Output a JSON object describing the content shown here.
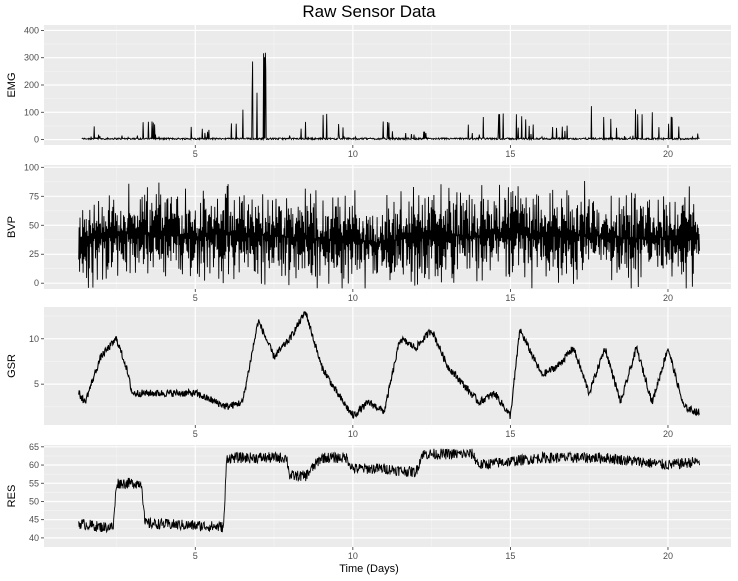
{
  "chart": {
    "title": "Raw Sensor Data",
    "xlabel": "Time (Days)"
  },
  "chart_data": {
    "type": "line",
    "title": "Raw Sensor Data",
    "xlabel": "Time (Days)",
    "xlim": [
      0.2,
      22
    ],
    "x_ticks": [
      5,
      10,
      15,
      20
    ],
    "grid": true,
    "panels": [
      {
        "name": "EMG",
        "ylabel": "EMG",
        "ylim": [
          -20,
          420
        ],
        "y_ticks": [
          0,
          100,
          200,
          300,
          400
        ],
        "series": [
          {
            "x": [
              1.4,
              1.9,
              2.2,
              3.3,
              4.0,
              5.2,
              6.0,
              7.2,
              8.0,
              9.0,
              10.0,
              11.0,
              12.0,
              13.0,
              14.0,
              15.0,
              16.0,
              17.0,
              18.0,
              19.0,
              20.0,
              21.0
            ],
            "y": [
              5,
              60,
              10,
              120,
              10,
              60,
              10,
              415,
              20,
              110,
              15,
              70,
              15,
              70,
              80,
              100,
              60,
              80,
              155,
              110,
              90,
              30
            ]
          }
        ]
      },
      {
        "name": "BVP",
        "ylabel": "BVP",
        "ylim": [
          -5,
          102
        ],
        "y_ticks": [
          0,
          25,
          50,
          75,
          100
        ],
        "series": [
          {
            "x": [
              1.3,
              2.0,
              3.0,
              4.0,
              5.0,
              6.0,
              7.0,
              8.0,
              9.0,
              10.0,
              11.0,
              12.0,
              13.0,
              14.0,
              15.0,
              16.0,
              17.0,
              18.0,
              19.0,
              20.0,
              21.0
            ],
            "y": [
              40,
              38,
              45,
              42,
              40,
              44,
              42,
              40,
              38,
              36,
              35,
              40,
              42,
              40,
              45,
              40,
              42,
              40,
              38,
              40,
              42
            ]
          }
        ]
      },
      {
        "name": "GSR",
        "ylabel": "GSR",
        "ylim": [
          0.5,
          13.5
        ],
        "y_ticks": [
          5,
          10
        ],
        "series": [
          {
            "x": [
              1.3,
              1.5,
              2.0,
              2.5,
              2.8,
              3.0,
              4.0,
              5.0,
              6.0,
              6.5,
              7.0,
              7.5,
              8.0,
              8.5,
              9.0,
              9.5,
              10.0,
              10.5,
              11.0,
              11.5,
              12.0,
              12.5,
              13.0,
              13.5,
              14.0,
              14.5,
              15.0,
              15.3,
              16.0,
              16.5,
              17.0,
              17.5,
              18.0,
              18.5,
              19.0,
              19.5,
              20.0,
              20.5,
              21.0
            ],
            "y": [
              4,
              3,
              8,
              10,
              7,
              4,
              4,
              4,
              2.5,
              3,
              12,
              8,
              10,
              13,
              7,
              4,
              1.5,
              3,
              2,
              10,
              9,
              11,
              7,
              5,
              3,
              4,
              1.5,
              11,
              6,
              7,
              9,
              4,
              9,
              3,
              9,
              3,
              9,
              2.5,
              1.8
            ]
          }
        ]
      },
      {
        "name": "RES",
        "ylabel": "RES",
        "ylim": [
          37.5,
          65.5
        ],
        "y_ticks": [
          40,
          45,
          50,
          55,
          60,
          65
        ],
        "series": [
          {
            "x": [
              1.3,
              2.0,
              2.4,
              2.5,
              3.3,
              3.4,
              5.9,
              6.0,
              7.0,
              7.9,
              8.0,
              8.5,
              9.0,
              9.8,
              10.0,
              11.0,
              12.0,
              12.2,
              13.0,
              13.8,
              14.0,
              15.0,
              16.0,
              17.0,
              18.0,
              19.0,
              20.0,
              21.0
            ],
            "y": [
              44,
              43,
              43,
              55,
              55,
              44,
              43,
              62,
              62,
              62,
              57,
              57,
              62,
              62,
              59,
              59,
              58,
              63,
              63,
              63,
              60,
              61,
              62,
              62,
              62,
              61,
              60,
              61
            ]
          }
        ]
      }
    ]
  }
}
